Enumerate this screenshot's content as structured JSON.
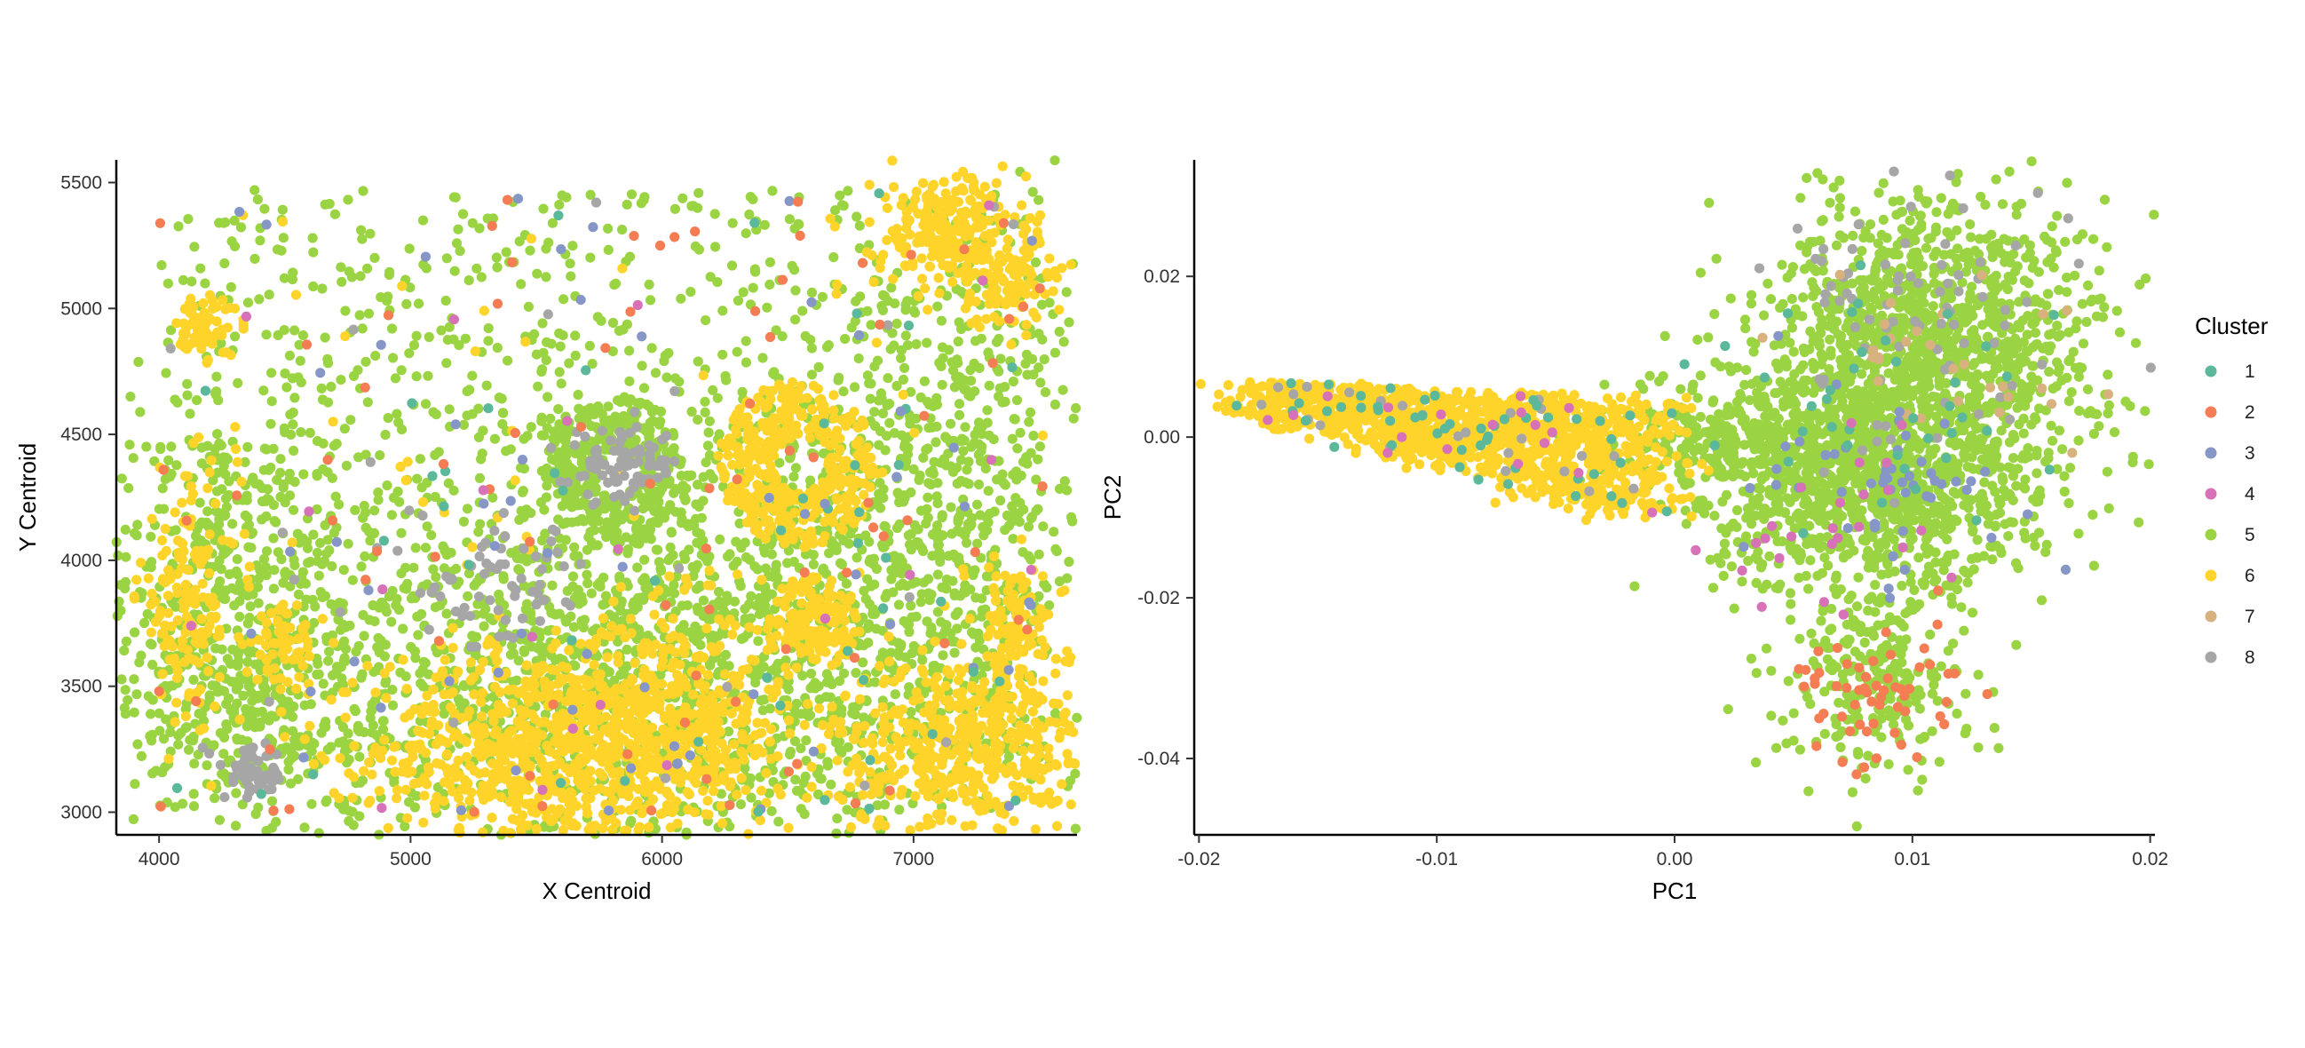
{
  "chart_data": [
    {
      "type": "scatter",
      "xlabel": "X Centroid",
      "ylabel": "Y Centroid",
      "xlim": [
        3830,
        7650
      ],
      "ylim": [
        2910,
        5590
      ],
      "xticks": [
        4000,
        5000,
        6000,
        7000
      ],
      "yticks": [
        3000,
        3500,
        4000,
        4500,
        5000,
        5500
      ],
      "grid": false,
      "structure": {
        "rings": [
          {
            "cx": 6550,
            "cy": 4380,
            "r": 220,
            "w": 110,
            "n": 420,
            "cluster": 6
          },
          {
            "cx": 5820,
            "cy": 4350,
            "r": 200,
            "w": 100,
            "n": 340,
            "cluster": 5
          },
          {
            "cx": 4200,
            "cy": 4920,
            "r": 80,
            "w": 60,
            "n": 70,
            "cluster": 6
          },
          {
            "cx": 6600,
            "cy": 3750,
            "r": 110,
            "w": 80,
            "n": 160,
            "cluster": 6
          }
        ],
        "blobs": [
          {
            "cx": 5500,
            "cy": 3250,
            "sx": 320,
            "sy": 200,
            "n": 700,
            "cluster": 6
          },
          {
            "cx": 6050,
            "cy": 3350,
            "sx": 230,
            "sy": 230,
            "n": 520,
            "cluster": 6
          },
          {
            "cx": 7200,
            "cy": 3250,
            "sx": 260,
            "sy": 180,
            "n": 520,
            "cluster": 6
          },
          {
            "cx": 7150,
            "cy": 5300,
            "sx": 150,
            "sy": 120,
            "n": 240,
            "cluster": 6
          },
          {
            "cx": 7380,
            "cy": 5100,
            "sx": 110,
            "sy": 100,
            "n": 100,
            "cluster": 6
          },
          {
            "cx": 7400,
            "cy": 3700,
            "sx": 100,
            "sy": 150,
            "n": 120,
            "cluster": 6
          },
          {
            "cx": 4120,
            "cy": 3850,
            "sx": 100,
            "sy": 240,
            "n": 150,
            "cluster": 6
          },
          {
            "cx": 4500,
            "cy": 3650,
            "sx": 60,
            "sy": 90,
            "n": 60,
            "cluster": 6
          },
          {
            "cx": 4380,
            "cy": 3150,
            "sx": 60,
            "sy": 50,
            "n": 60,
            "cluster": 8
          },
          {
            "cx": 5850,
            "cy": 4380,
            "sx": 110,
            "sy": 70,
            "n": 80,
            "cluster": 8
          },
          {
            "cx": 5400,
            "cy": 3900,
            "sx": 180,
            "sy": 120,
            "n": 60,
            "cluster": 8
          },
          {
            "cx": 5600,
            "cy": 3550,
            "sx": 500,
            "sy": 350,
            "n": 800,
            "cluster": 5
          },
          {
            "cx": 6600,
            "cy": 3800,
            "sx": 400,
            "sy": 500,
            "n": 600,
            "cluster": 5
          },
          {
            "cx": 4300,
            "cy": 3700,
            "sx": 260,
            "sy": 500,
            "n": 650,
            "cluster": 5
          },
          {
            "cx": 7200,
            "cy": 4200,
            "sx": 300,
            "sy": 600,
            "n": 500,
            "cluster": 5
          }
        ],
        "background": {
          "n": 1500,
          "mix": {
            "1": 0.03,
            "2": 0.05,
            "3": 0.03,
            "4": 0.02,
            "5": 0.8,
            "6": 0.05,
            "8": 0.02
          }
        }
      }
    },
    {
      "type": "scatter",
      "xlabel": "PC1",
      "ylabel": "PC2",
      "xlim": [
        -0.0202,
        0.0202
      ],
      "ylim": [
        -0.0495,
        0.0345
      ],
      "xticks": [
        -0.02,
        -0.01,
        0.0,
        0.01,
        0.02
      ],
      "yticks": [
        0.02,
        0.0,
        -0.02,
        -0.04
      ],
      "grid": false,
      "structure": {
        "wedges": [
          {
            "apex": [
              -0.018,
              0.005
            ],
            "base": [
              -0.001,
              0.0
            ],
            "spread": 0.008,
            "n": 1300,
            "cluster": 6
          }
        ],
        "blobs": [
          {
            "cx": 0.011,
            "cy": 0.012,
            "sx": 0.0035,
            "sy": 0.009,
            "n": 1200,
            "cluster": 5
          },
          {
            "cx": 0.0085,
            "cy": -0.007,
            "sx": 0.0035,
            "sy": 0.006,
            "n": 900,
            "cluster": 5
          },
          {
            "cx": 0.0035,
            "cy": 0.0,
            "sx": 0.003,
            "sy": 0.004,
            "n": 400,
            "cluster": 5
          },
          {
            "cx": 0.0085,
            "cy": -0.03,
            "sx": 0.002,
            "sy": 0.006,
            "n": 250,
            "cluster": 5
          },
          {
            "cx": 0.0085,
            "cy": -0.032,
            "sx": 0.0018,
            "sy": 0.005,
            "n": 60,
            "cluster": 2
          },
          {
            "cx": 0.011,
            "cy": 0.014,
            "sx": 0.003,
            "sy": 0.008,
            "n": 80,
            "cluster": 8
          },
          {
            "cx": 0.009,
            "cy": -0.005,
            "sx": 0.003,
            "sy": 0.006,
            "n": 50,
            "cluster": 3
          },
          {
            "cx": 0.009,
            "cy": 0.005,
            "sx": 0.004,
            "sy": 0.008,
            "n": 40,
            "cluster": 1
          },
          {
            "cx": 0.011,
            "cy": 0.01,
            "sx": 0.003,
            "sy": 0.006,
            "n": 30,
            "cluster": 7
          },
          {
            "cx": 0.007,
            "cy": -0.012,
            "sx": 0.003,
            "sy": 0.006,
            "n": 25,
            "cluster": 4
          }
        ]
      }
    }
  ],
  "legend": {
    "title": "Cluster",
    "placement": "right",
    "items": [
      {
        "label": "1",
        "color": "#5bb89a"
      },
      {
        "label": "2",
        "color": "#f47d54"
      },
      {
        "label": "3",
        "color": "#8596c7"
      },
      {
        "label": "4",
        "color": "#d771b8"
      },
      {
        "label": "5",
        "color": "#9bd443"
      },
      {
        "label": "6",
        "color": "#ffd42a"
      },
      {
        "label": "7",
        "color": "#d8b27e"
      },
      {
        "label": "8",
        "color": "#a6a6a6"
      }
    ]
  }
}
